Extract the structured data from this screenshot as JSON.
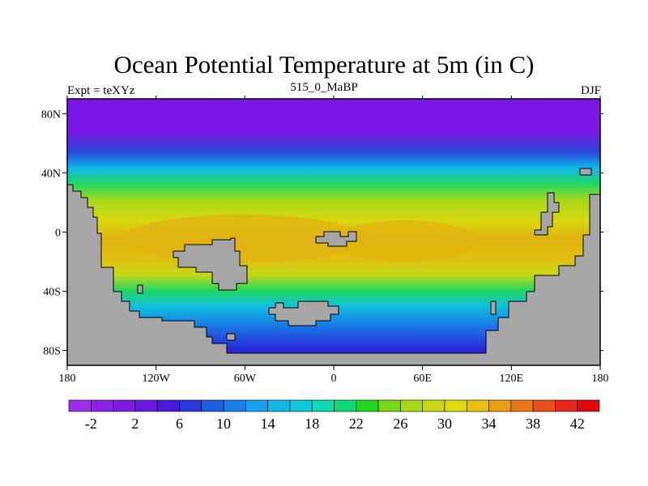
{
  "title": "Ocean Potential Temperature at 5m (in C)",
  "subtitle_left": "Expt = teXYz",
  "subtitle_center": "515_0_MaBP",
  "subtitle_right": "DJF",
  "map": {
    "projection": "cylindrical-equidistant",
    "lon_range": [
      -180,
      180
    ],
    "lat_range": [
      -90,
      90
    ],
    "land_color": "#a6a6a6",
    "x_ticks": [
      "180",
      "120W",
      "60W",
      "0",
      "60E",
      "120E",
      "180"
    ],
    "y_ticks": [
      "80N",
      "40N",
      "0",
      "40S",
      "80S"
    ]
  },
  "colorbar": {
    "colors": [
      "#9b2ee6",
      "#8a22e8",
      "#7c1ce0",
      "#6a1ae0",
      "#4b1ad8",
      "#2a3ad8",
      "#1a60e0",
      "#1a80e8",
      "#1aa0f0",
      "#10b8e8",
      "#10c8d8",
      "#10d8b0",
      "#10d878",
      "#20d820",
      "#78d818",
      "#a8d818",
      "#c8d818",
      "#e0d810",
      "#e8c010",
      "#e8a010",
      "#e87818",
      "#e85018",
      "#e82818",
      "#e00808"
    ],
    "labels": [
      "-2",
      "2",
      "6",
      "10",
      "14",
      "18",
      "22",
      "26",
      "30",
      "34",
      "38",
      "42"
    ]
  }
}
